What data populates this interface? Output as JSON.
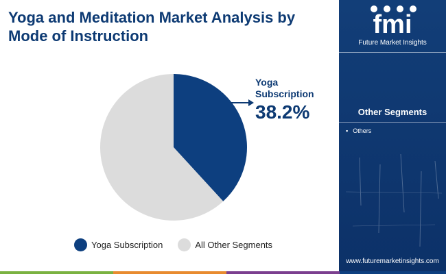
{
  "title": "Yoga and Meditation Market Analysis by Mode of Instruction",
  "callout": {
    "label": "Yoga Subscription",
    "percent": "38.2%"
  },
  "legend": [
    {
      "label": "Yoga Subscription",
      "color": "#0d3f7f"
    },
    {
      "label": "All Other Segments",
      "color": "#dcdcdc"
    }
  ],
  "side_panel": {
    "logo_text": "fmi",
    "logo_subtitle": "Future Market Insights",
    "segments_title": "Other Segments",
    "segments": [
      "Others"
    ],
    "website": "www.futuremarketinsights.com"
  },
  "colors": {
    "primary": "#0d3f7f",
    "secondary": "#dcdcdc",
    "panel": "#0f3a73",
    "accent_green": "#7ab241",
    "accent_purple": "#7b3f8f"
  },
  "chart_data": {
    "type": "pie",
    "title": "Yoga and Meditation Market Analysis by Mode of Instruction",
    "slices": [
      {
        "label": "Yoga Subscription",
        "value": 38.2,
        "color": "#0d3f7f"
      },
      {
        "label": "All Other Segments",
        "value": 61.8,
        "color": "#dcdcdc"
      }
    ],
    "legend_position": "bottom"
  }
}
